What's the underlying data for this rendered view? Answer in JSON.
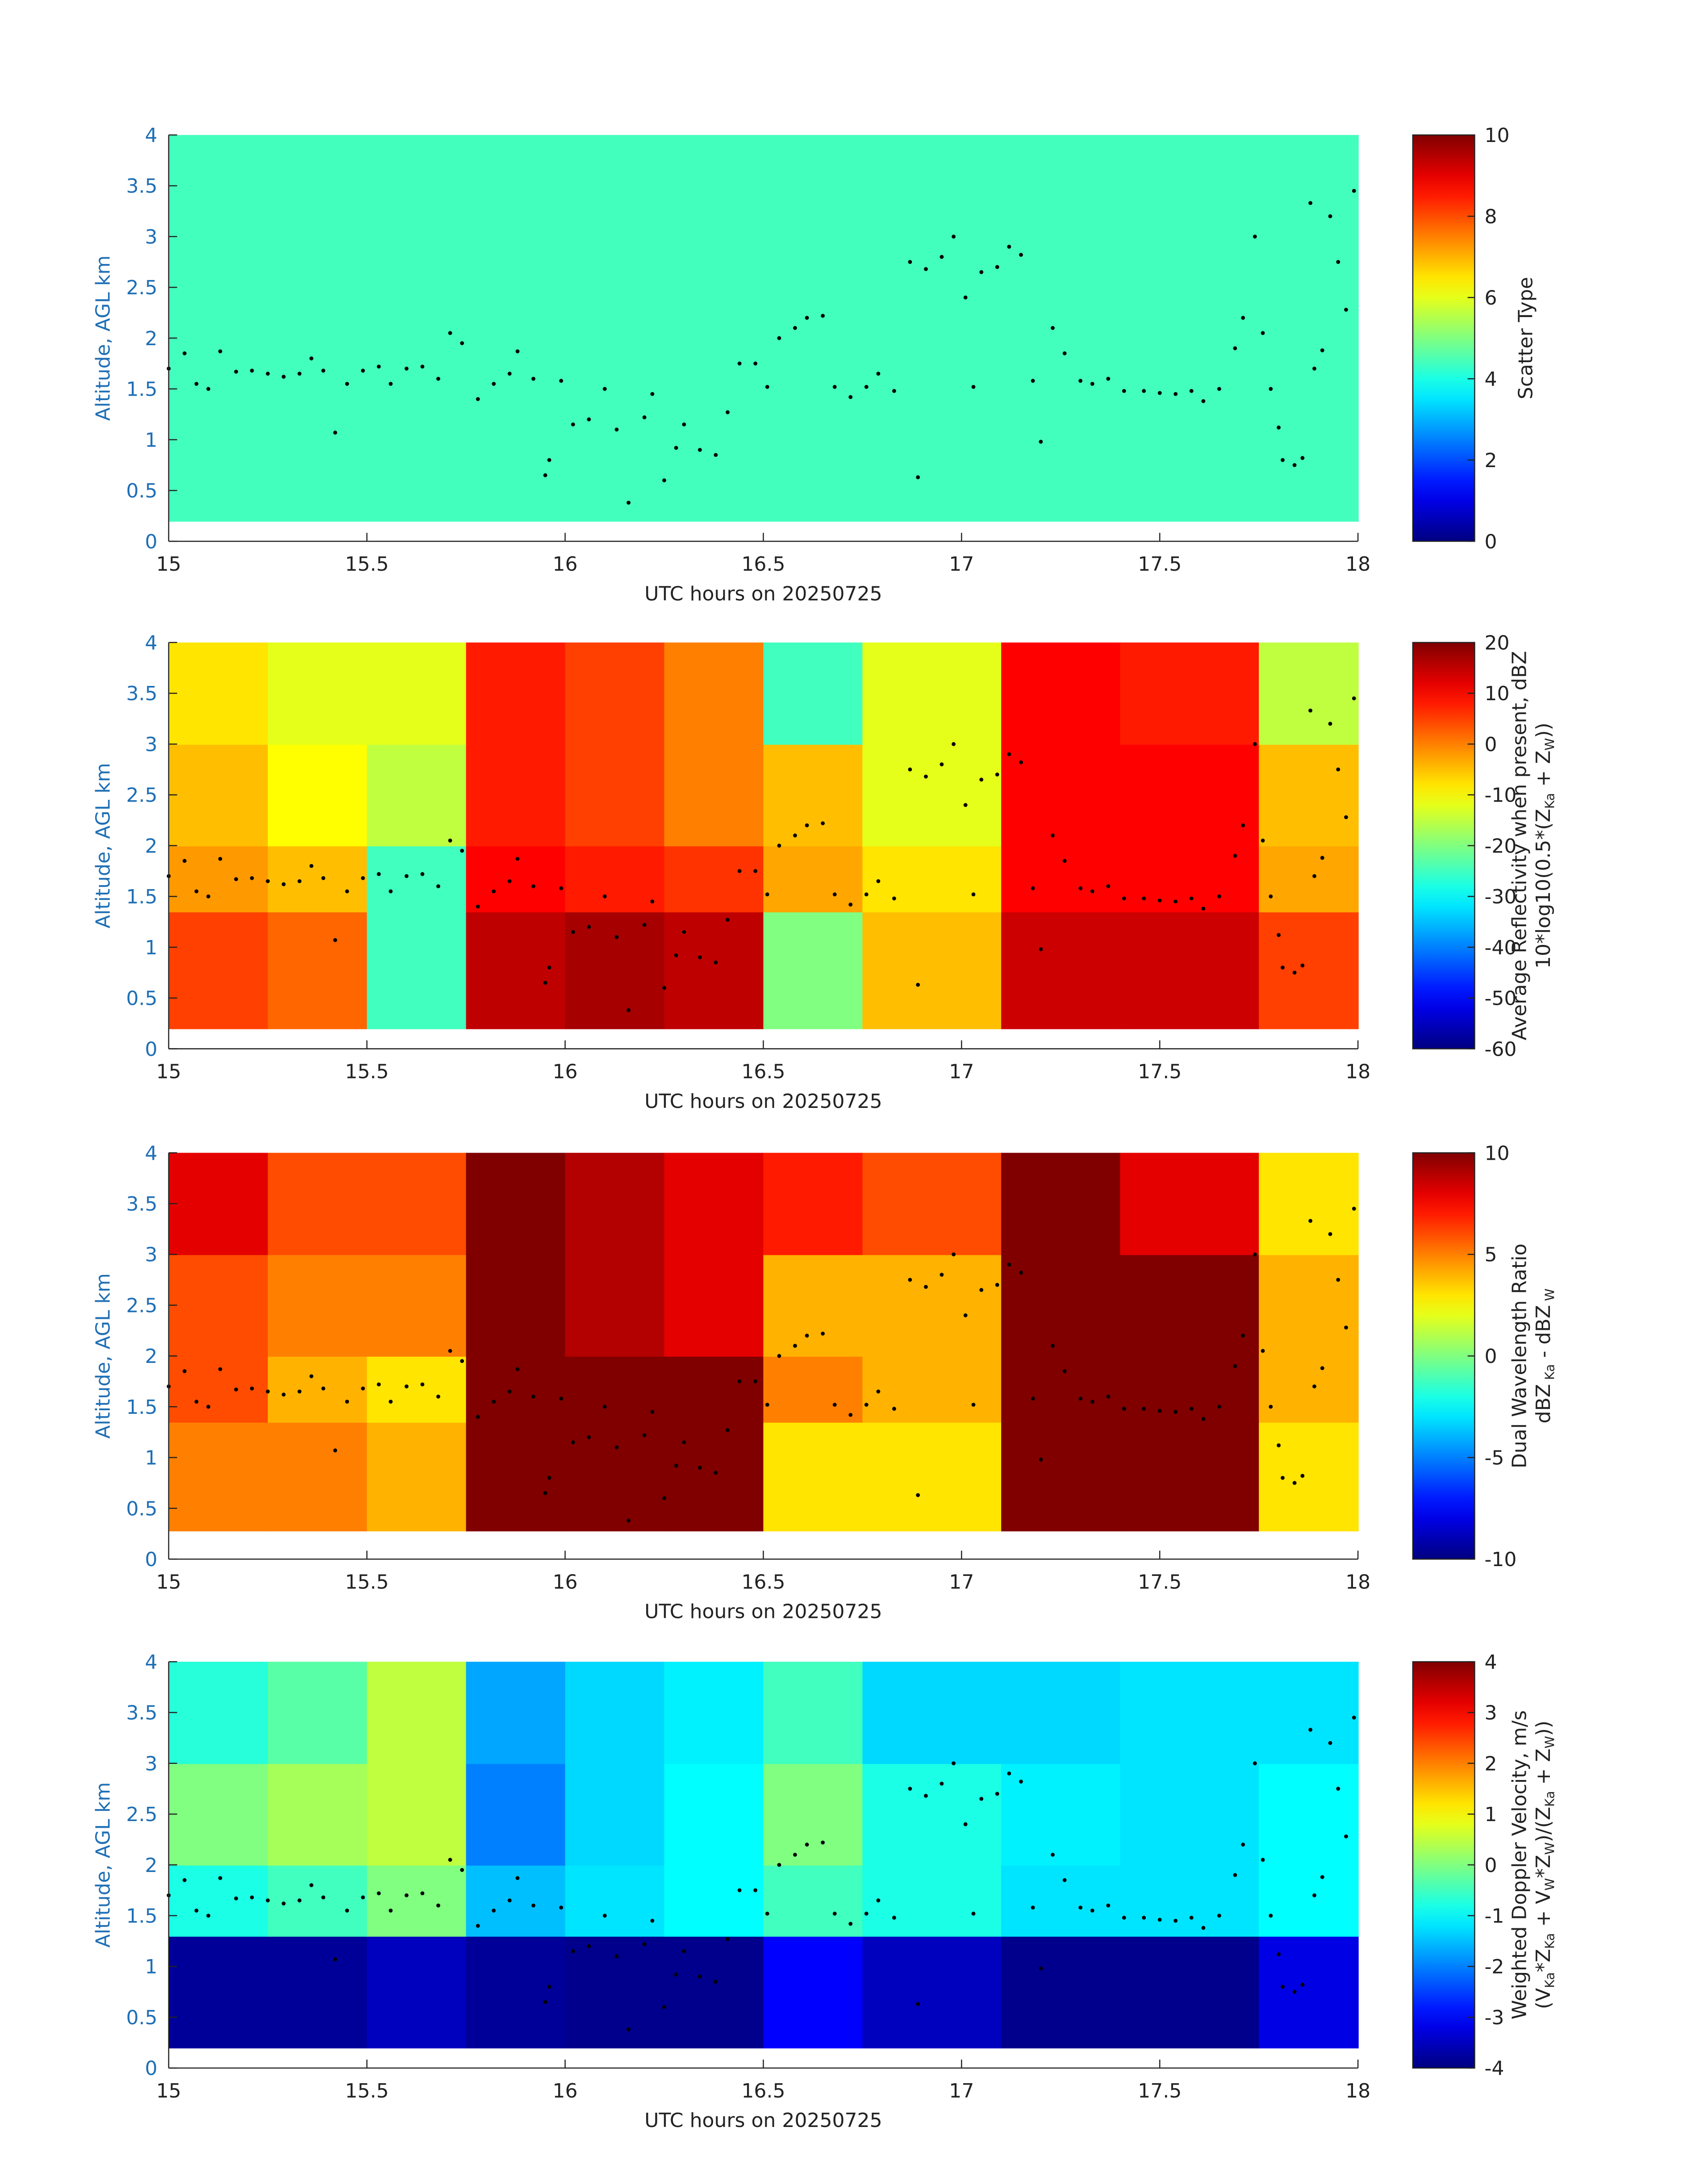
{
  "points": {
    "x": [
      15.0,
      15.04,
      15.07,
      15.1,
      15.13,
      15.17,
      15.21,
      15.25,
      15.29,
      15.33,
      15.36,
      15.39,
      15.42,
      15.45,
      15.49,
      15.53,
      15.56,
      15.6,
      15.64,
      15.68,
      15.71,
      15.74,
      15.78,
      15.82,
      15.86,
      15.88,
      15.92,
      15.95,
      15.96,
      15.99,
      16.02,
      16.06,
      16.1,
      16.13,
      16.16,
      16.2,
      16.22,
      16.25,
      16.28,
      16.3,
      16.34,
      16.38,
      16.41,
      16.44,
      16.48,
      16.51,
      16.54,
      16.58,
      16.61,
      16.65,
      16.68,
      16.72,
      16.76,
      16.79,
      16.83,
      16.87,
      16.89,
      16.91,
      16.95,
      16.98,
      17.01,
      17.03,
      17.05,
      17.09,
      17.12,
      17.15,
      17.18,
      17.2,
      17.23,
      17.26,
      17.3,
      17.33,
      17.37,
      17.41,
      17.46,
      17.5,
      17.54,
      17.58,
      17.61,
      17.65,
      17.69,
      17.71,
      17.74,
      17.76,
      17.78,
      17.8,
      17.81,
      17.84,
      17.86,
      17.88,
      17.89,
      17.91,
      17.93,
      17.95,
      17.97,
      17.99
    ],
    "y": [
      1.7,
      1.85,
      1.55,
      1.5,
      1.87,
      1.67,
      1.68,
      1.65,
      1.62,
      1.65,
      1.8,
      1.68,
      1.07,
      1.55,
      1.68,
      1.72,
      1.55,
      1.7,
      1.72,
      1.6,
      2.05,
      1.95,
      1.4,
      1.55,
      1.65,
      1.87,
      1.6,
      0.65,
      0.8,
      1.58,
      1.15,
      1.2,
      1.5,
      1.1,
      0.38,
      1.22,
      1.45,
      0.6,
      0.92,
      1.15,
      0.9,
      0.85,
      1.27,
      1.75,
      1.75,
      1.52,
      2.0,
      2.1,
      2.2,
      2.22,
      1.52,
      1.42,
      1.52,
      1.65,
      1.48,
      2.75,
      0.63,
      2.68,
      2.8,
      3.0,
      2.4,
      1.52,
      2.65,
      2.7,
      2.9,
      2.82,
      1.58,
      0.98,
      2.1,
      1.85,
      1.58,
      1.55,
      1.6,
      1.48,
      1.48,
      1.46,
      1.45,
      1.48,
      1.38,
      1.5,
      1.9,
      2.2,
      3.0,
      2.05,
      1.5,
      1.12,
      0.8,
      0.75,
      0.82,
      3.33,
      1.7,
      1.88,
      3.2,
      2.75,
      2.28,
      3.45
    ]
  },
  "chart_data": [
    {
      "type": "heatmap",
      "ylabel": "Altitude, AGL km",
      "xlabel": "UTC hours on 20250725",
      "xlim": [
        15,
        18
      ],
      "xticks": [
        15,
        15.5,
        16,
        16.5,
        17,
        17.5,
        18
      ],
      "ylim": [
        0,
        4
      ],
      "yticks": [
        0,
        0.5,
        1,
        1.5,
        2,
        2.5,
        3,
        3.5,
        4
      ],
      "x_edges": [
        15,
        18
      ],
      "y_edges": [
        0.2,
        4
      ],
      "z": [
        [
          4.4
        ]
      ],
      "colorbar": {
        "lim": [
          0,
          10
        ],
        "ticks": [
          0,
          2,
          4,
          6,
          8,
          10
        ],
        "label": [
          [
            {
              "text": "Scatter Type"
            }
          ]
        ]
      }
    },
    {
      "type": "heatmap",
      "ylabel": "Altitude, AGL km",
      "xlabel": "UTC hours on 20250725",
      "xlim": [
        15,
        18
      ],
      "xticks": [
        15,
        15.5,
        16,
        16.5,
        17,
        17.5,
        18
      ],
      "ylim": [
        0,
        4
      ],
      "yticks": [
        0,
        0.5,
        1,
        1.5,
        2,
        2.5,
        3,
        3.5,
        4
      ],
      "x_edges": [
        15,
        15.25,
        15.5,
        15.75,
        16,
        16.25,
        16.5,
        16.75,
        17.1,
        17.4,
        17.75,
        18
      ],
      "y_edges": [
        0.2,
        1.35,
        2,
        3,
        4
      ],
      "z": [
        [
          5,
          2,
          -25,
          15,
          17,
          15,
          -20,
          -5,
          14,
          14,
          5
        ],
        [
          -2,
          -5,
          -25,
          10,
          8,
          6,
          -3,
          -8,
          10,
          10,
          -3
        ],
        [
          -5,
          -10,
          -15,
          8,
          5,
          0,
          -5,
          -12,
          10,
          10,
          -5
        ],
        [
          -8,
          -12,
          -12,
          8,
          5,
          0,
          -25,
          -12,
          10,
          8,
          -15
        ]
      ],
      "colorbar": {
        "lim": [
          -60,
          20
        ],
        "ticks": [
          -60,
          -50,
          -40,
          -30,
          -20,
          -10,
          0,
          10,
          20
        ],
        "label": [
          [
            {
              "text": "Average Reflectivity when present, dBZ"
            }
          ],
          [
            {
              "text": "10*log10(0.5*(Z"
            },
            {
              "sub": "Ka"
            },
            {
              "text": " + Z"
            },
            {
              "sub": "W"
            },
            {
              "text": "))"
            }
          ]
        ]
      }
    },
    {
      "type": "heatmap",
      "ylabel": "Altitude, AGL km",
      "xlabel": "UTC hours on 20250725",
      "xlim": [
        15,
        18
      ],
      "xticks": [
        15,
        15.5,
        16,
        16.5,
        17,
        17.5,
        18
      ],
      "ylim": [
        0,
        4
      ],
      "yticks": [
        0,
        0.5,
        1,
        1.5,
        2,
        2.5,
        3,
        3.5,
        4
      ],
      "x_edges": [
        15,
        15.25,
        15.5,
        15.75,
        16,
        16.25,
        16.5,
        16.75,
        17.1,
        17.4,
        17.75,
        18
      ],
      "y_edges": [
        0.28,
        1.35,
        2,
        3,
        4
      ],
      "z": [
        [
          5,
          5,
          4,
          10,
          10,
          10,
          3,
          3,
          10,
          10,
          3
        ],
        [
          6,
          4,
          3,
          10,
          10,
          10,
          5,
          4,
          10,
          10,
          4
        ],
        [
          6,
          5,
          5,
          10,
          9,
          8,
          4,
          4,
          10,
          10,
          4
        ],
        [
          8,
          6,
          6,
          10,
          9,
          8,
          7,
          6,
          10,
          8,
          3
        ]
      ],
      "colorbar": {
        "lim": [
          -10,
          10
        ],
        "ticks": [
          -10,
          -5,
          0,
          5,
          10
        ],
        "label": [
          [
            {
              "text": "Dual Wavelength Ratio"
            }
          ],
          [
            {
              "text": "dBZ"
            },
            {
              "sub": " Ka"
            },
            {
              "text": " - dBZ"
            },
            {
              "sub": " W"
            }
          ]
        ]
      }
    },
    {
      "type": "heatmap",
      "ylabel": "Altitude, AGL km",
      "xlabel": "UTC hours on 20250725",
      "xlim": [
        15,
        18
      ],
      "xticks": [
        15,
        15.5,
        16,
        16.5,
        17,
        17.5,
        18
      ],
      "ylim": [
        0,
        4
      ],
      "yticks": [
        0,
        0.5,
        1,
        1.5,
        2,
        2.5,
        3,
        3.5,
        4
      ],
      "x_edges": [
        15,
        15.25,
        15.5,
        15.75,
        16,
        16.25,
        16.5,
        16.75,
        17.1,
        17.4,
        17.75,
        18
      ],
      "y_edges": [
        0.2,
        1.3,
        2,
        3,
        4
      ],
      "z": [
        [
          -3.8,
          -3.8,
          -3.5,
          -3.8,
          -3.9,
          -3.9,
          -3,
          -3.5,
          -3.9,
          -3.9,
          -3.2
        ],
        [
          -0.8,
          -0.5,
          0,
          -1.5,
          -1.2,
          -1,
          -0.5,
          -0.8,
          -1.2,
          -1.2,
          -1
        ],
        [
          0,
          0.3,
          0.5,
          -2,
          -1.3,
          -1,
          0,
          -0.8,
          -1.1,
          -1.2,
          -1
        ],
        [
          -0.7,
          -0.3,
          0.5,
          -1.7,
          -1.3,
          -1.1,
          -0.5,
          -1.3,
          -1.3,
          -1.2,
          -1.2
        ]
      ],
      "colorbar": {
        "lim": [
          -4,
          4
        ],
        "ticks": [
          -4,
          -3,
          -2,
          -1,
          0,
          1,
          2,
          3,
          4
        ],
        "label": [
          [
            {
              "text": "Weighted Doppler Velocity, m/s"
            }
          ],
          [
            {
              "text": "(V"
            },
            {
              "sub": "Ka"
            },
            {
              "text": "*Z"
            },
            {
              "sub": "Ka"
            },
            {
              "text": " + V"
            },
            {
              "sub": "W"
            },
            {
              "text": "*Z"
            },
            {
              "sub": "W"
            },
            {
              "text": ")/(Z"
            },
            {
              "sub": "Ka"
            },
            {
              "text": " + Z"
            },
            {
              "sub": "W"
            },
            {
              "text": "))"
            }
          ]
        ]
      }
    }
  ]
}
